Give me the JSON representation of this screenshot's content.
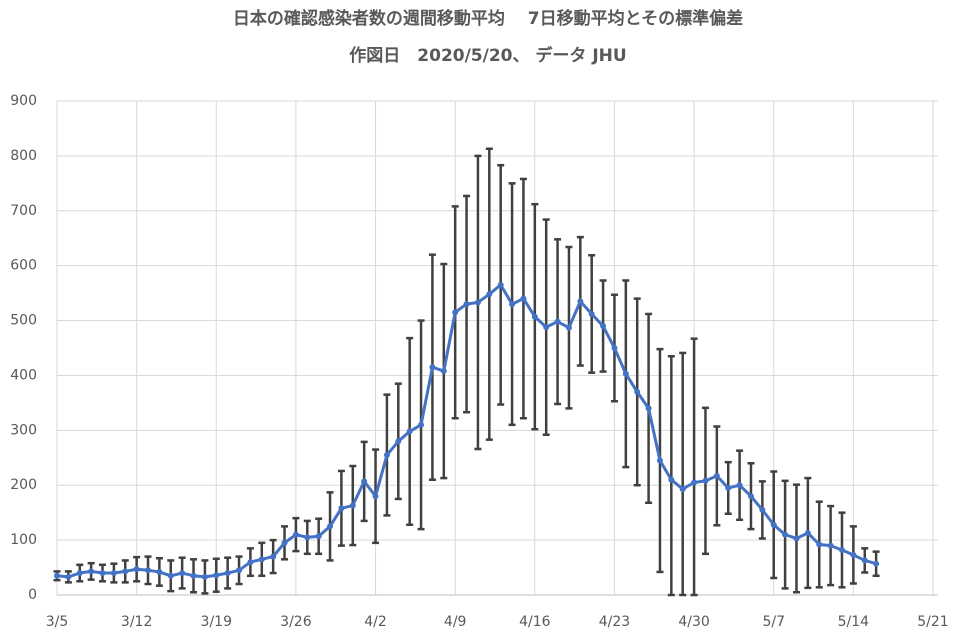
{
  "chart_data": {
    "type": "line",
    "title": "日本の確認感染者数の週間移動平均　 7日移動平均とその標準偏差",
    "subtitle": "作図日　2020/5/20、 データ JHU",
    "categories": [
      "3/5",
      null,
      null,
      null,
      null,
      null,
      null,
      "3/12",
      null,
      null,
      null,
      null,
      null,
      null,
      "3/19",
      null,
      null,
      null,
      null,
      null,
      null,
      "3/26",
      null,
      null,
      null,
      null,
      null,
      null,
      "4/2",
      null,
      null,
      null,
      null,
      null,
      null,
      "4/9",
      null,
      null,
      null,
      null,
      null,
      null,
      "4/16",
      null,
      null,
      null,
      null,
      null,
      null,
      "4/23",
      null,
      null,
      null,
      null,
      null,
      null,
      "4/30",
      null,
      null,
      null,
      null,
      null,
      null,
      "5/7",
      null,
      null,
      null,
      null,
      null,
      null,
      "5/14",
      null,
      null,
      null,
      null,
      null,
      null,
      "5/21"
    ],
    "values": [
      35,
      33,
      40,
      43,
      40,
      40,
      43,
      47,
      45,
      42,
      35,
      40,
      35,
      33,
      36,
      40,
      45,
      60,
      65,
      70,
      95,
      110,
      105,
      107,
      125,
      158,
      163,
      207,
      180,
      255,
      280,
      298,
      310,
      415,
      408,
      515,
      530,
      533,
      548,
      565,
      530,
      540,
      507,
      488,
      498,
      487,
      535,
      512,
      490,
      450,
      403,
      370,
      340,
      245,
      210,
      193,
      205,
      208,
      217,
      195,
      200,
      180,
      155,
      128,
      110,
      103,
      113,
      92,
      90,
      82,
      73,
      63,
      57,
      null,
      null,
      null,
      null,
      null
    ],
    "errors": [
      8,
      10,
      15,
      15,
      15,
      17,
      20,
      22,
      25,
      25,
      28,
      28,
      30,
      30,
      30,
      28,
      25,
      25,
      30,
      30,
      30,
      30,
      30,
      32,
      62,
      68,
      72,
      72,
      85,
      110,
      105,
      170,
      190,
      205,
      195,
      193,
      197,
      267,
      265,
      218,
      220,
      218,
      205,
      196,
      150,
      147,
      117,
      107,
      83,
      97,
      170,
      170,
      172,
      203,
      225,
      248,
      262,
      133,
      90,
      47,
      63,
      60,
      52,
      97,
      98,
      98,
      100,
      78,
      72,
      68,
      52,
      22,
      22,
      null,
      null,
      null,
      null,
      null
    ],
    "color": "#4472c4",
    "error_color": "#404040",
    "ylim": [
      0,
      900
    ],
    "yticks": [
      0,
      100,
      200,
      300,
      400,
      500,
      600,
      700,
      800,
      900
    ],
    "grid": true
  }
}
